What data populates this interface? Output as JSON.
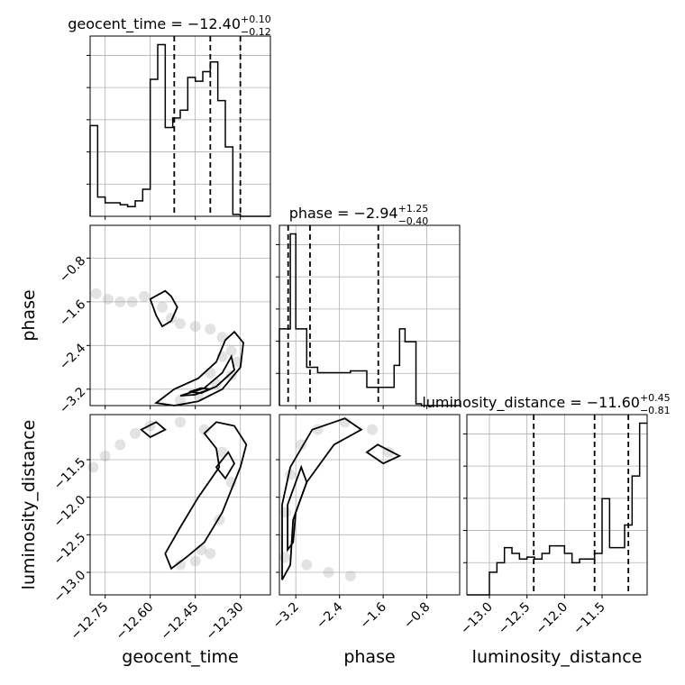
{
  "chart_data": {
    "type": "corner",
    "parameters": [
      "geocent_time",
      "phase",
      "luminosity_distance"
    ],
    "titles": {
      "geocent_time": {
        "prefix": "geocent_time = −12.40",
        "sup": "+0.10",
        "sub": "−0.12"
      },
      "phase": {
        "prefix": "phase = −2.94",
        "sup": "+1.25",
        "sub": "−0.40"
      },
      "luminosity_distance": {
        "prefix": "luminosity_distance = −11.60",
        "sup": "+0.45",
        "sub": "−0.81"
      }
    },
    "ranges": {
      "geocent_time": [
        -12.8,
        -12.2
      ],
      "phase": [
        -3.5,
        -0.2
      ],
      "luminosity_distance": [
        -13.3,
        -10.9
      ]
    },
    "ticks": {
      "geocent_time": [
        {
          "v": -12.75,
          "label": "−12.75"
        },
        {
          "v": -12.6,
          "label": "−12.60"
        },
        {
          "v": -12.45,
          "label": "−12.45"
        },
        {
          "v": -12.3,
          "label": "−12.30"
        }
      ],
      "phase": [
        {
          "v": -3.2,
          "label": "−3.2"
        },
        {
          "v": -2.4,
          "label": "−2.4"
        },
        {
          "v": -1.6,
          "label": "−1.6"
        },
        {
          "v": -0.8,
          "label": "−0.8"
        }
      ],
      "luminosity_distance": [
        {
          "v": -13.0,
          "label": "−13.0"
        },
        {
          "v": -12.5,
          "label": "−12.5"
        },
        {
          "v": -12.0,
          "label": "−12.0"
        },
        {
          "v": -11.5,
          "label": "−11.5"
        }
      ]
    },
    "histograms": {
      "geocent_time": {
        "edges": [
          -12.8,
          -12.775,
          -12.75,
          -12.725,
          -12.7,
          -12.675,
          -12.65,
          -12.625,
          -12.6,
          -12.575,
          -12.55,
          -12.525,
          -12.5,
          -12.475,
          -12.45,
          -12.425,
          -12.4,
          -12.375,
          -12.35,
          -12.325,
          -12.3,
          -12.275,
          -12.25,
          -12.225,
          -12.2
        ],
        "counts": [
          0.47,
          0.1,
          0.07,
          0.07,
          0.06,
          0.05,
          0.08,
          0.14,
          0.71,
          0.89,
          0.46,
          0.51,
          0.55,
          0.72,
          0.7,
          0.75,
          0.8,
          0.6,
          0.36,
          0.01,
          0,
          0,
          0,
          0
        ]
      },
      "phase": {
        "edges": [
          -3.5,
          -3.4,
          -3.3,
          -3.2,
          -3.1,
          -3.0,
          -2.9,
          -2.8,
          -2.7,
          -2.6,
          -2.5,
          -2.4,
          -2.3,
          -2.2,
          -2.1,
          -2.0,
          -1.9,
          -1.8,
          -1.7,
          -1.6,
          -1.5,
          -1.4,
          -1.3,
          -1.2,
          -1.1,
          -1.0,
          -0.9,
          -0.8,
          -0.7,
          -0.6,
          -0.5,
          -0.4,
          -0.3,
          -0.2
        ],
        "counts": [
          0.42,
          0.42,
          0.94,
          0.42,
          0.42,
          0.21,
          0.21,
          0.18,
          0.18,
          0.18,
          0.18,
          0.18,
          0.18,
          0.19,
          0.19,
          0.19,
          0.1,
          0.1,
          0.1,
          0.1,
          0.1,
          0.22,
          0.42,
          0.35,
          0.35,
          0.01,
          0,
          0,
          0,
          0,
          0,
          0,
          0
        ]
      },
      "luminosity_distance": {
        "edges": [
          -13.3,
          -13.2,
          -13.1,
          -13.0,
          -12.9,
          -12.8,
          -12.7,
          -12.6,
          -12.5,
          -12.4,
          -12.3,
          -12.2,
          -12.1,
          -12.0,
          -11.9,
          -11.8,
          -11.7,
          -11.6,
          -11.5,
          -11.4,
          -11.3,
          -11.2,
          -11.1,
          -11.0,
          -10.9
        ],
        "counts": [
          0,
          0,
          0,
          0.12,
          0.17,
          0.25,
          0.22,
          0.19,
          0.2,
          0.19,
          0.22,
          0.26,
          0.26,
          0.22,
          0.17,
          0.19,
          0.19,
          0.22,
          0.51,
          0.25,
          0.25,
          0.37,
          0.63,
          0.91
        ]
      }
    },
    "quantiles": {
      "geocent_time": [
        -12.52,
        -12.4,
        -12.3
      ],
      "phase": [
        -3.34,
        -2.94,
        -1.69
      ],
      "luminosity_distance": [
        -12.41,
        -11.6,
        -11.15
      ]
    },
    "contours": [
      {
        "row": "phase",
        "col": "geocent_time",
        "paths": [
          [
            [
              -12.6,
              -1.55
            ],
            [
              -12.55,
              -1.4
            ],
            [
              -12.53,
              -1.5
            ],
            [
              -12.51,
              -1.7
            ],
            [
              -12.53,
              -1.95
            ],
            [
              -12.56,
              -2.05
            ],
            [
              -12.58,
              -1.85
            ],
            [
              -12.6,
              -1.55
            ]
          ],
          [
            [
              -12.58,
              -3.45
            ],
            [
              -12.52,
              -3.2
            ],
            [
              -12.44,
              -3.0
            ],
            [
              -12.38,
              -2.7
            ],
            [
              -12.35,
              -2.3
            ],
            [
              -12.32,
              -2.15
            ],
            [
              -12.29,
              -2.35
            ],
            [
              -12.3,
              -2.8
            ],
            [
              -12.36,
              -3.2
            ],
            [
              -12.44,
              -3.42
            ],
            [
              -12.52,
              -3.5
            ],
            [
              -12.58,
              -3.45
            ]
          ],
          [
            [
              -12.5,
              -3.32
            ],
            [
              -12.42,
              -3.18
            ],
            [
              -12.36,
              -2.9
            ],
            [
              -12.33,
              -2.6
            ],
            [
              -12.32,
              -2.85
            ],
            [
              -12.38,
              -3.15
            ],
            [
              -12.45,
              -3.3
            ],
            [
              -12.5,
              -3.32
            ]
          ],
          [
            [
              -12.47,
              -3.25
            ],
            [
              -12.43,
              -3.18
            ],
            [
              -12.4,
              -3.2
            ],
            [
              -12.43,
              -3.27
            ],
            [
              -12.47,
              -3.25
            ]
          ]
        ]
      },
      {
        "row": "luminosity_distance",
        "col": "geocent_time",
        "paths": [
          [
            [
              -12.63,
              -11.1
            ],
            [
              -12.58,
              -11.0
            ],
            [
              -12.55,
              -11.1
            ],
            [
              -12.6,
              -11.2
            ],
            [
              -12.63,
              -11.1
            ]
          ],
          [
            [
              -12.42,
              -11.15
            ],
            [
              -12.38,
              -11.0
            ],
            [
              -12.32,
              -11.05
            ],
            [
              -12.28,
              -11.3
            ],
            [
              -12.3,
              -11.6
            ],
            [
              -12.36,
              -12.2
            ],
            [
              -12.42,
              -12.6
            ],
            [
              -12.48,
              -12.8
            ],
            [
              -12.53,
              -12.95
            ],
            [
              -12.55,
              -12.75
            ],
            [
              -12.5,
              -12.4
            ],
            [
              -12.44,
              -12.0
            ],
            [
              -12.37,
              -11.6
            ],
            [
              -12.38,
              -11.35
            ],
            [
              -12.42,
              -11.15
            ]
          ],
          [
            [
              -12.38,
              -11.6
            ],
            [
              -12.34,
              -11.4
            ],
            [
              -12.32,
              -11.55
            ],
            [
              -12.35,
              -11.75
            ],
            [
              -12.38,
              -11.6
            ]
          ]
        ]
      },
      {
        "row": "luminosity_distance",
        "col": "phase",
        "paths": [
          [
            [
              -3.45,
              -13.1
            ],
            [
              -3.45,
              -12.1
            ],
            [
              -3.3,
              -11.6
            ],
            [
              -2.9,
              -11.1
            ],
            [
              -2.3,
              -10.95
            ],
            [
              -2.0,
              -11.1
            ],
            [
              -2.5,
              -11.3
            ],
            [
              -3.0,
              -11.8
            ],
            [
              -3.25,
              -12.3
            ],
            [
              -3.3,
              -12.9
            ],
            [
              -3.45,
              -13.1
            ]
          ],
          [
            [
              -3.35,
              -12.7
            ],
            [
              -3.35,
              -12.1
            ],
            [
              -3.1,
              -11.6
            ],
            [
              -3.0,
              -11.8
            ],
            [
              -3.2,
              -12.2
            ],
            [
              -3.25,
              -12.6
            ],
            [
              -3.35,
              -12.7
            ]
          ],
          [
            [
              -1.9,
              -11.4
            ],
            [
              -1.7,
              -11.3
            ],
            [
              -1.3,
              -11.45
            ],
            [
              -1.6,
              -11.55
            ],
            [
              -1.9,
              -11.4
            ]
          ]
        ]
      }
    ],
    "density": [
      {
        "row": "phase",
        "col": "geocent_time",
        "points": [
          [
            -12.78,
            -1.45
          ],
          [
            -12.74,
            -1.55
          ],
          [
            -12.7,
            -1.6
          ],
          [
            -12.66,
            -1.6
          ],
          [
            -12.62,
            -1.5
          ],
          [
            -12.56,
            -1.7
          ],
          [
            -12.53,
            -1.9
          ],
          [
            -12.5,
            -2.0
          ],
          [
            -12.45,
            -2.05
          ],
          [
            -12.4,
            -2.1
          ],
          [
            -12.36,
            -2.25
          ],
          [
            -12.33,
            -2.5
          ],
          [
            -12.31,
            -2.7
          ],
          [
            -12.33,
            -2.95
          ],
          [
            -12.38,
            -3.1
          ],
          [
            -12.44,
            -3.3
          ],
          [
            -12.5,
            -3.4
          ],
          [
            -12.4,
            -2.9
          ],
          [
            -12.36,
            -2.6
          ]
        ]
      },
      {
        "row": "luminosity_distance",
        "col": "geocent_time",
        "points": [
          [
            -12.79,
            -11.6
          ],
          [
            -12.75,
            -11.45
          ],
          [
            -12.7,
            -11.3
          ],
          [
            -12.65,
            -11.15
          ],
          [
            -12.6,
            -11.05
          ],
          [
            -12.5,
            -11.0
          ],
          [
            -12.42,
            -11.1
          ],
          [
            -12.36,
            -11.4
          ],
          [
            -12.33,
            -11.8
          ],
          [
            -12.37,
            -12.3
          ],
          [
            -12.43,
            -12.7
          ],
          [
            -12.5,
            -12.9
          ],
          [
            -12.45,
            -12.85
          ],
          [
            -12.4,
            -12.75
          ]
        ]
      },
      {
        "row": "luminosity_distance",
        "col": "phase",
        "points": [
          [
            -3.4,
            -12.8
          ],
          [
            -3.38,
            -12.2
          ],
          [
            -3.3,
            -11.7
          ],
          [
            -3.1,
            -11.3
          ],
          [
            -2.8,
            -11.1
          ],
          [
            -2.3,
            -11.0
          ],
          [
            -1.8,
            -11.1
          ],
          [
            -1.5,
            -11.4
          ],
          [
            -3.0,
            -12.9
          ],
          [
            -2.6,
            -13.0
          ],
          [
            -2.2,
            -13.05
          ]
        ]
      }
    ],
    "quantile_lines": "dashed",
    "grid": true
  }
}
